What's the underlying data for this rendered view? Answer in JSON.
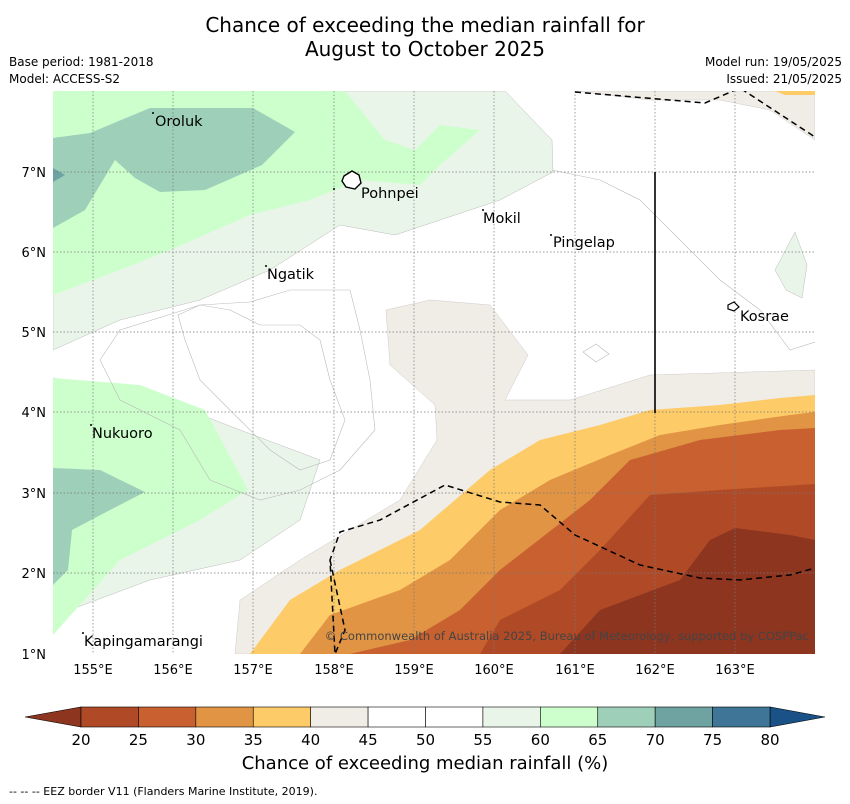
{
  "title_line1": "Chance of exceeding the median rainfall for",
  "title_line2": "August to October 2025",
  "meta": {
    "base_period": "Base period: 1981-2018",
    "model": "Model: ACCESS-S2",
    "model_run": "Model run: 19/05/2025",
    "issued": "Issued: 21/05/2025"
  },
  "axes": {
    "lon_ticks": [
      "155°E",
      "156°E",
      "157°E",
      "158°E",
      "159°E",
      "160°E",
      "161°E",
      "162°E",
      "163°E"
    ],
    "lat_ticks": [
      "7°N",
      "6°N",
      "5°N",
      "4°N",
      "3°N",
      "2°N",
      "1°N"
    ]
  },
  "places": [
    "Oroluk",
    "Pohnpei",
    "Mokil",
    "Pingelap",
    "Ngatik",
    "Kosrae",
    "Nukuoro",
    "Kapingamarangi"
  ],
  "copyright": "© Commonwealth of Australia 2025, Bureau of Meteorology, supported by COSPPac",
  "colorbar": {
    "ticks": [
      "20",
      "25",
      "30",
      "35",
      "40",
      "45",
      "50",
      "55",
      "60",
      "65",
      "70",
      "75",
      "80"
    ],
    "colors": [
      "#b04a26",
      "#c8612f",
      "#e09444",
      "#fdcb68",
      "#f0ece6",
      "#ffffff",
      "#ffffff",
      "#eaf5ea",
      "#ccffcc",
      "#9dcfb9",
      "#6ea3a2",
      "#3f7596"
    ],
    "under_color": "#8e3520",
    "over_color": "#1a5287",
    "label": "Chance of exceeding median rainfall (%)"
  },
  "footnote": "--  --  -- EEZ border V11 (Flanders Marine Institute, 2019)."
}
